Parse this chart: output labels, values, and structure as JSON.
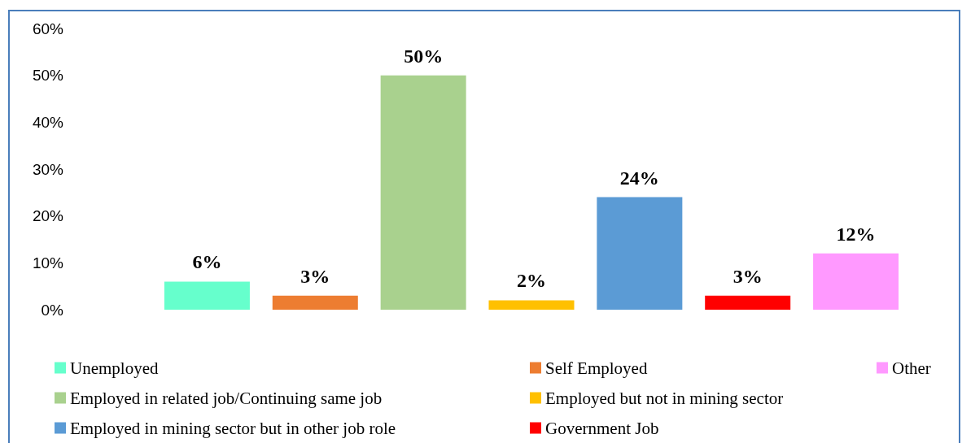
{
  "chart_data": {
    "type": "bar",
    "categories": [
      null,
      null,
      null,
      null,
      null,
      null,
      null
    ],
    "stacked": true,
    "series": [
      {
        "name": "Unemployed",
        "color": "#66ffcc",
        "values": [
          6,
          null,
          null,
          null,
          null,
          null,
          null
        ],
        "value_labels": [
          "6%",
          null,
          null,
          null,
          null,
          null,
          null
        ]
      },
      {
        "name": "Self Employed",
        "color": "#ed7d31",
        "values": [
          null,
          3,
          null,
          null,
          null,
          null,
          null
        ],
        "value_labels": [
          null,
          "3%",
          null,
          null,
          null,
          null,
          null
        ]
      },
      {
        "name": "Employed in related job/Continuing same job",
        "color": "#a9d18e",
        "values": [
          null,
          null,
          50,
          null,
          null,
          null,
          null
        ],
        "value_labels": [
          null,
          null,
          "50%",
          null,
          null,
          null,
          null
        ]
      },
      {
        "name": "Employed but not in mining sector",
        "color": "#ffc000",
        "values": [
          null,
          null,
          null,
          2,
          null,
          null,
          null
        ],
        "value_labels": [
          null,
          null,
          null,
          "2%",
          null,
          null,
          null
        ]
      },
      {
        "name": "Employed in mining sector but in other job role",
        "color": "#5b9bd5",
        "values": [
          null,
          null,
          null,
          null,
          24,
          null,
          null
        ],
        "value_labels": [
          null,
          null,
          null,
          null,
          "24%",
          null,
          null
        ]
      },
      {
        "name": "Government Job",
        "color": "#ff0000",
        "values": [
          null,
          null,
          null,
          null,
          null,
          3,
          null
        ],
        "value_labels": [
          null,
          null,
          null,
          null,
          null,
          "3%",
          null
        ]
      },
      {
        "name": "Other",
        "color": "#ff99ff",
        "values": [
          null,
          null,
          null,
          null,
          null,
          null,
          12
        ],
        "value_labels": [
          null,
          null,
          null,
          null,
          null,
          null,
          "12%"
        ]
      }
    ],
    "ylim": [
      0,
      60
    ],
    "yticks": [
      {
        "value": 0,
        "label": "0%"
      },
      {
        "value": 10,
        "label": "10%"
      },
      {
        "value": 20,
        "label": "20%"
      },
      {
        "value": 30,
        "label": "30%"
      },
      {
        "value": 40,
        "label": "40%"
      },
      {
        "value": 50,
        "label": "50%"
      },
      {
        "value": 60,
        "label": "60%"
      }
    ],
    "grid": false,
    "legend": "bottom"
  }
}
